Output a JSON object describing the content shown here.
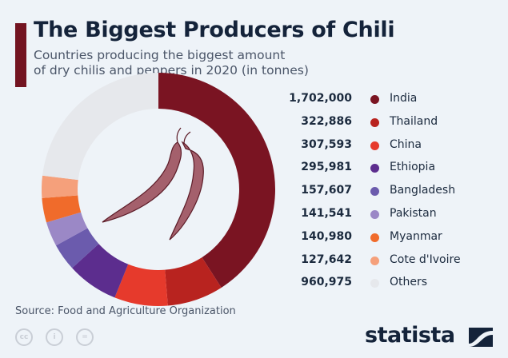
{
  "header": {
    "title": "The Biggest Producers of Chili",
    "subtitle_line1": "Countries producing the biggest amount",
    "subtitle_line2": "of dry chilis and peppers in 2020 (in tonnes)"
  },
  "chart_data": {
    "type": "pie",
    "title": "The Biggest Producers of Chili",
    "unit": "tonnes",
    "categories": [
      "India",
      "Thailand",
      "China",
      "Ethiopia",
      "Bangladesh",
      "Pakistan",
      "Myanmar",
      "Cote d'Ivoire",
      "Others"
    ],
    "values": [
      1702000,
      322886,
      307593,
      295981,
      157607,
      141541,
      140980,
      127642,
      960975
    ],
    "labels": [
      "1,702,000",
      "322,886",
      "307,593",
      "295,981",
      "157,607",
      "141,541",
      "140,980",
      "127,642",
      "960,975"
    ],
    "colors": [
      "#7a1422",
      "#b8231f",
      "#e63a2c",
      "#5c2d8e",
      "#6b5bad",
      "#9b88c6",
      "#f06b2b",
      "#f5a07b",
      "#e6e8ec"
    ],
    "legend_position": "right"
  },
  "footer": {
    "source": "Source: Food and Agriculture Organization",
    "logo": "statista",
    "cc_icons": [
      "cc",
      "by",
      "nd"
    ],
    "cc_labels": [
      "cc",
      "i",
      "="
    ]
  }
}
